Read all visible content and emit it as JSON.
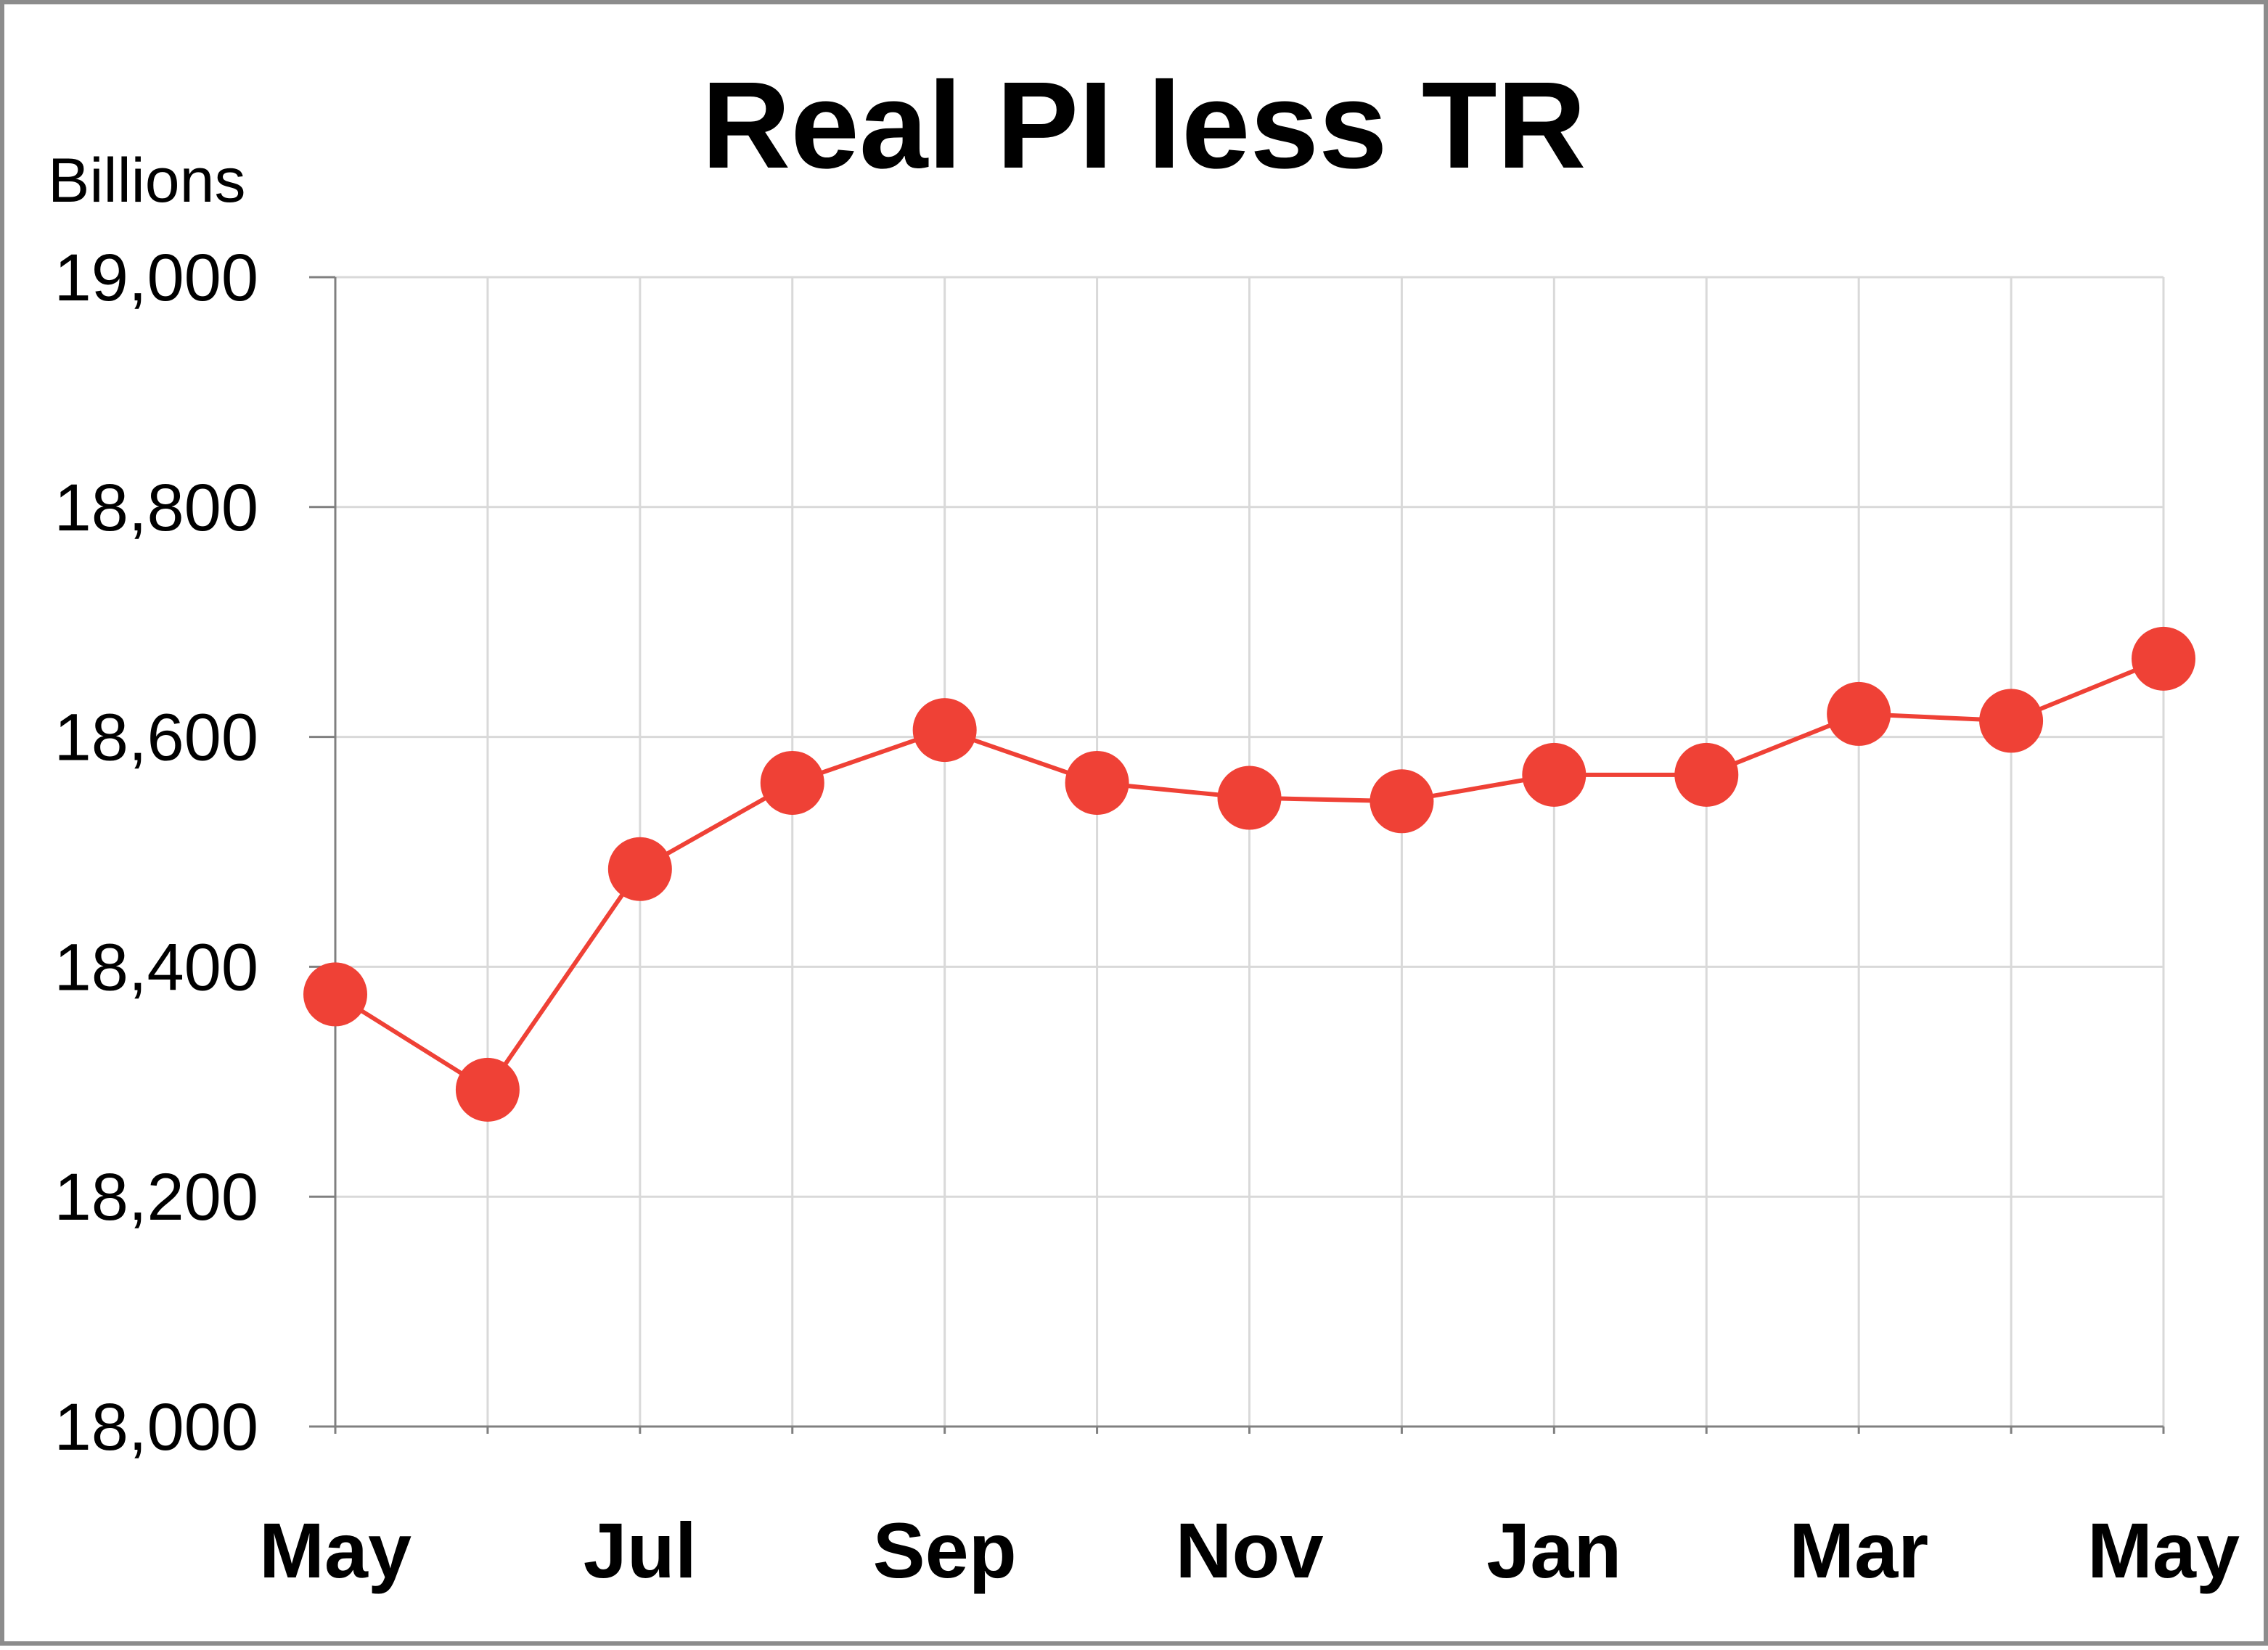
{
  "chart_data": {
    "type": "line",
    "title": "Real PI less TR",
    "ylabel": "Billions",
    "xlabel": "",
    "ylim": [
      18000,
      19000
    ],
    "yticks": [
      "18,000",
      "18,200",
      "18,400",
      "18,600",
      "18,800",
      "19,000"
    ],
    "ytick_values": [
      18000,
      18200,
      18400,
      18600,
      18800,
      19000
    ],
    "x_tick_labels": [
      "May",
      "",
      "Jul",
      "",
      "Sep",
      "",
      "Nov",
      "",
      "Jan",
      "",
      "Mar",
      "",
      "May"
    ],
    "series": [
      {
        "values": [
          18376,
          18293,
          18485,
          18560,
          18606,
          18560,
          18547,
          18544,
          18567,
          18567,
          18620,
          18614,
          18668
        ]
      }
    ],
    "grid": true,
    "colors": {
      "series": "#ef4136",
      "grid": "#d9d9d9",
      "axis": "#808080",
      "border": "#8c8c8c"
    }
  }
}
